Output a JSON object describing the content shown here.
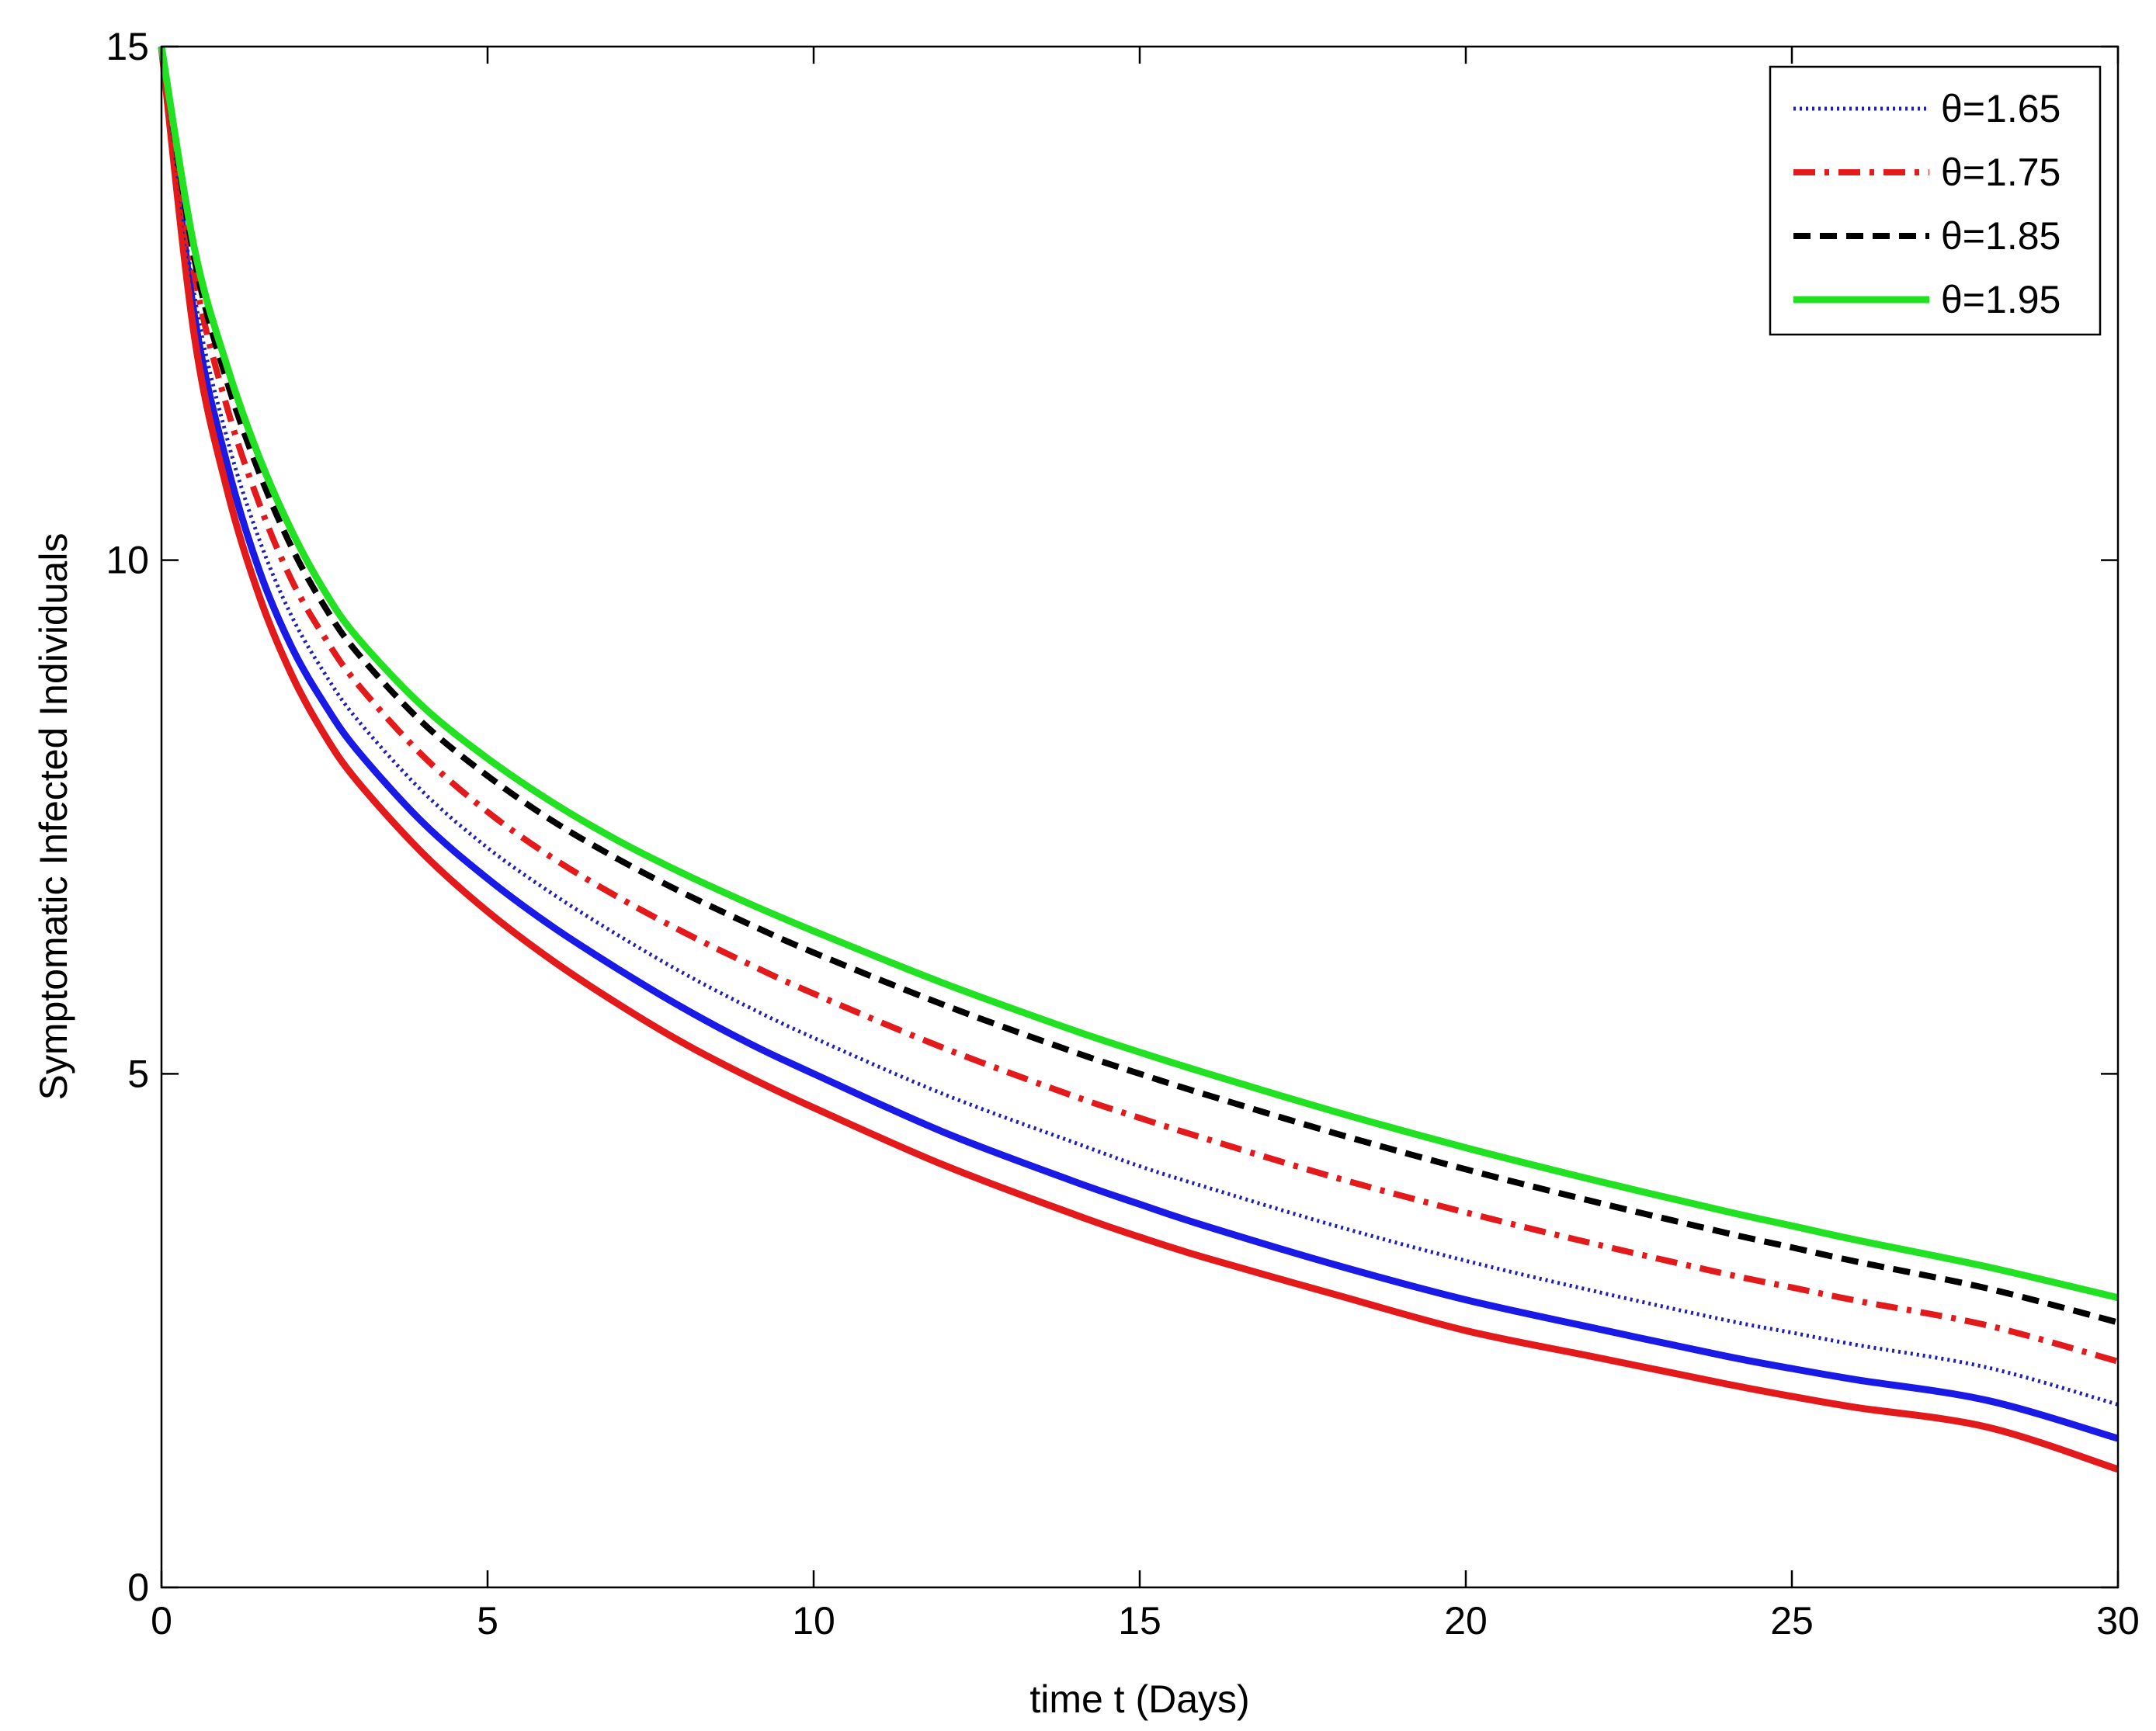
{
  "chart_data": {
    "type": "line",
    "title": "",
    "xlabel": "time t (Days)",
    "ylabel": "Symptomatic Infected Individuals",
    "xlim": [
      0,
      30
    ],
    "ylim": [
      0,
      15
    ],
    "xticks": [
      0,
      5,
      10,
      15,
      20,
      25,
      30
    ],
    "yticks": [
      0,
      5,
      10,
      15
    ],
    "xtick_labels": [
      "0",
      "5",
      "10",
      "15",
      "20",
      "25",
      "30"
    ],
    "ytick_labels": [
      "0",
      "5",
      "10",
      "15"
    ],
    "grid": false,
    "legend_position": "top-right",
    "x": [
      0,
      0.5,
      1,
      1.5,
      2,
      2.5,
      3,
      4,
      5,
      6,
      7,
      8,
      9,
      10,
      12,
      14,
      15,
      16,
      18,
      20,
      22,
      24,
      25,
      26,
      28,
      30
    ],
    "series": [
      {
        "name": "θ=1.65",
        "color": "#1f1fb4",
        "style": "dotted",
        "in_legend": true,
        "values": [
          15,
          12.6,
          11.2,
          10.2,
          9.45,
          8.9,
          8.45,
          7.75,
          7.2,
          6.75,
          6.35,
          5.98,
          5.65,
          5.35,
          4.8,
          4.33,
          4.1,
          3.9,
          3.52,
          3.18,
          2.88,
          2.6,
          2.48,
          2.36,
          2.14,
          1.78
        ]
      },
      {
        "name": "θ=1.75",
        "color": "#e31a1c",
        "style": "dashdot",
        "in_legend": true,
        "values": [
          15,
          12.8,
          11.5,
          10.55,
          9.8,
          9.25,
          8.8,
          8.1,
          7.55,
          7.1,
          6.72,
          6.38,
          6.07,
          5.78,
          5.25,
          4.78,
          4.57,
          4.37,
          3.99,
          3.65,
          3.34,
          3.05,
          2.92,
          2.79,
          2.55,
          2.2
        ]
      },
      {
        "name": "θ=1.85",
        "color": "#000000",
        "style": "dashed",
        "in_legend": true,
        "values": [
          15,
          12.95,
          11.75,
          10.85,
          10.12,
          9.55,
          9.1,
          8.42,
          7.9,
          7.46,
          7.09,
          6.76,
          6.46,
          6.18,
          5.67,
          5.21,
          5.0,
          4.8,
          4.42,
          4.07,
          3.75,
          3.45,
          3.31,
          3.17,
          2.91,
          2.58
        ]
      },
      {
        "name": "θ=1.95",
        "color": "#22e022",
        "style": "solid",
        "in_legend": true,
        "values": [
          15,
          13.05,
          11.9,
          11.0,
          10.28,
          9.7,
          9.25,
          8.58,
          8.07,
          7.64,
          7.27,
          6.95,
          6.66,
          6.39,
          5.88,
          5.42,
          5.21,
          5.01,
          4.63,
          4.28,
          3.96,
          3.66,
          3.52,
          3.38,
          3.12,
          2.82
        ]
      },
      {
        "name": "",
        "color": "#1a1ae6",
        "style": "solid",
        "in_legend": false,
        "values": [
          15,
          12.4,
          10.95,
          9.9,
          9.15,
          8.6,
          8.15,
          7.45,
          6.9,
          6.43,
          6.02,
          5.64,
          5.3,
          5.0,
          4.43,
          3.95,
          3.73,
          3.52,
          3.14,
          2.8,
          2.52,
          2.25,
          2.13,
          2.02,
          1.82,
          1.45
        ]
      },
      {
        "name": "",
        "color": "#e31a1c",
        "style": "solid",
        "in_legend": false,
        "values": [
          15,
          12.2,
          10.7,
          9.65,
          8.88,
          8.3,
          7.85,
          7.15,
          6.58,
          6.1,
          5.68,
          5.3,
          4.97,
          4.67,
          4.11,
          3.63,
          3.41,
          3.21,
          2.85,
          2.5,
          2.24,
          1.98,
          1.86,
          1.75,
          1.56,
          1.15
        ]
      }
    ]
  }
}
